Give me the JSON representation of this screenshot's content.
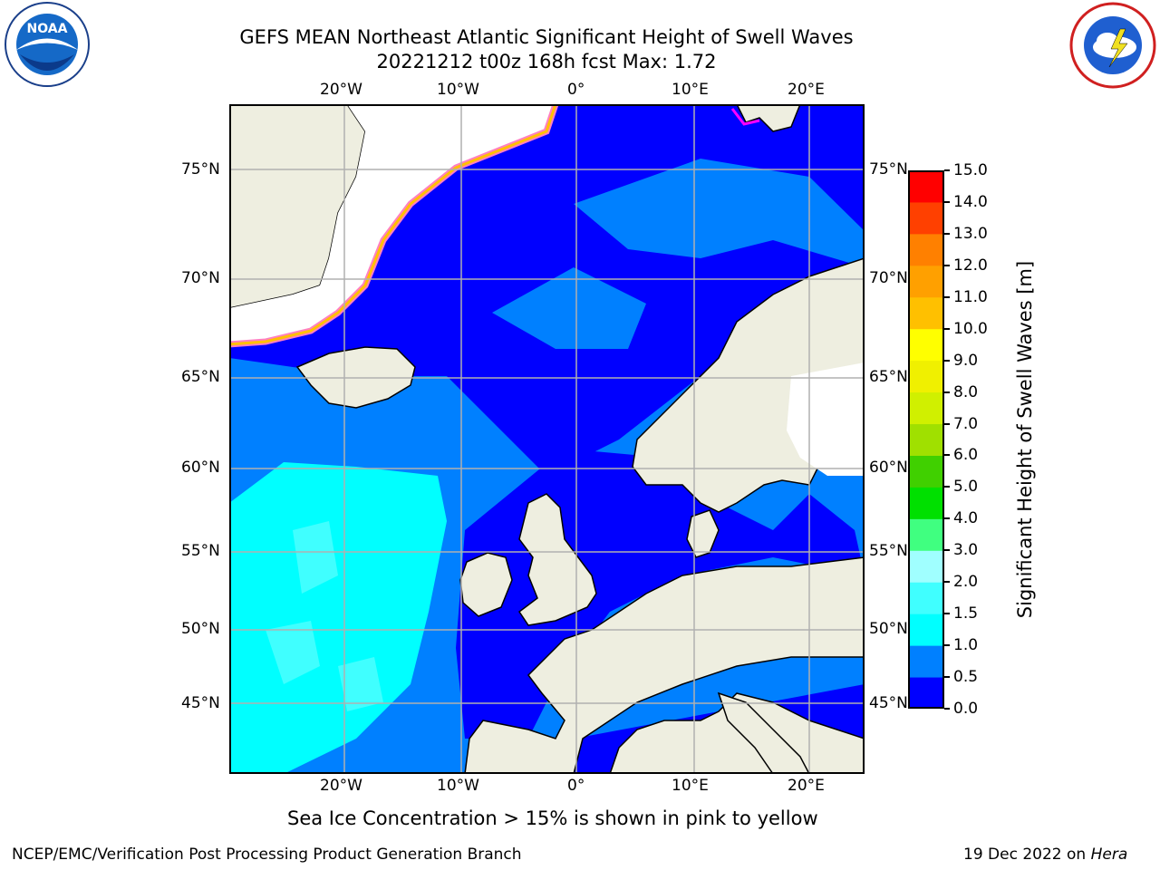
{
  "header": {
    "title_line1": "GEFS MEAN Northeast Atlantic Significant Height of Swell Waves",
    "title_line2": "20221212 t00z 168h fcst   Max: 1.72"
  },
  "logos": {
    "left": "NOAA",
    "right": "National Weather Service"
  },
  "map": {
    "lon_labels": [
      "20°W",
      "10°W",
      "0°",
      "10°E",
      "20°E"
    ],
    "lat_labels": [
      "75°N",
      "70°N",
      "65°N",
      "60°N",
      "55°N",
      "50°N",
      "45°N"
    ],
    "colors": {
      "ocean_low": "#0000ff",
      "ocean_mid": "#0080ff",
      "ocean_high": "#00ffff",
      "ocean_lightcyan": "#40ffff",
      "land": "#eeeee0",
      "ice": "#ffffff",
      "ice_edge": [
        "#ff00ff",
        "#ff80c0",
        "#ffc000",
        "#ffff00"
      ],
      "grid": "#b0b0b0"
    }
  },
  "colorbar": {
    "label": "Significant Height of Swell Waves [m]",
    "ticks": [
      "15.0",
      "14.0",
      "13.0",
      "12.0",
      "11.0",
      "10.0",
      "9.0",
      "8.0",
      "7.0",
      "6.0",
      "5.0",
      "4.0",
      "3.0",
      "2.0",
      "1.5",
      "1.0",
      "0.5",
      "0.0"
    ],
    "colors": [
      "#0000ff",
      "#0080ff",
      "#00ffff",
      "#40ffff",
      "#a0ffff",
      "#40ff80",
      "#00e000",
      "#40d000",
      "#a0e000",
      "#d0f000",
      "#f0f000",
      "#ffff00",
      "#ffc000",
      "#ffa000",
      "#ff8000",
      "#ff4000",
      "#ff0000"
    ]
  },
  "note": "Sea Ice Concentration > 15% is shown in pink to yellow",
  "footer": {
    "left": "NCEP/EMC/Verification Post Processing Product Generation Branch",
    "right_date": "19 Dec 2022 on ",
    "right_host": "Hera"
  }
}
